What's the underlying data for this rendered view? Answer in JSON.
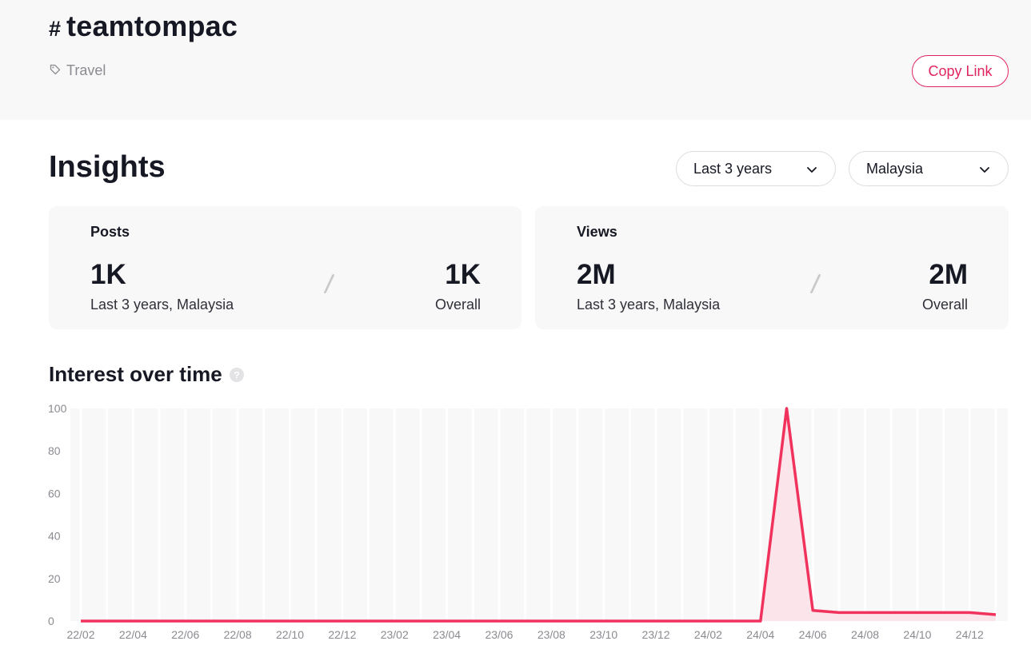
{
  "header": {
    "hash": "#",
    "hashtag": "teamtompac",
    "category": "Travel",
    "copy_link": "Copy Link"
  },
  "insights": {
    "title": "Insights",
    "time_filter": "Last 3 years",
    "region_filter": "Malaysia"
  },
  "stats": {
    "posts": {
      "label": "Posts",
      "value": "1K",
      "sub": "Last 3 years, Malaysia",
      "overall_value": "1K",
      "overall_label": "Overall"
    },
    "views": {
      "label": "Views",
      "value": "2M",
      "sub": "Last 3 years, Malaysia",
      "overall_value": "2M",
      "overall_label": "Overall"
    }
  },
  "interest": {
    "title": "Interest over time"
  },
  "colors": {
    "accent": "#e0245e",
    "line": "#f0325d",
    "area": "#fbe4ea",
    "panel": "#f8f8f8"
  },
  "chart_data": {
    "type": "area",
    "title": "",
    "xlabel": "",
    "ylabel": "",
    "ylim": [
      0,
      100
    ],
    "yticks": [
      "0",
      "20",
      "40",
      "60",
      "80",
      "100"
    ],
    "x_tick_labels": [
      "22/02",
      "22/04",
      "22/06",
      "22/08",
      "22/10",
      "22/12",
      "23/02",
      "23/04",
      "23/06",
      "23/08",
      "23/10",
      "23/12",
      "24/02",
      "24/04",
      "24/06",
      "24/08",
      "24/10",
      "24/12"
    ],
    "x": [
      "22/02",
      "22/03",
      "22/04",
      "22/05",
      "22/06",
      "22/07",
      "22/08",
      "22/09",
      "22/10",
      "22/11",
      "22/12",
      "23/01",
      "23/02",
      "23/03",
      "23/04",
      "23/05",
      "23/06",
      "23/07",
      "23/08",
      "23/09",
      "23/10",
      "23/11",
      "23/12",
      "24/01",
      "24/02",
      "24/03",
      "24/04",
      "24/05",
      "24/06",
      "24/07",
      "24/08",
      "24/09",
      "24/10",
      "24/11",
      "24/12",
      "25/01"
    ],
    "series": [
      {
        "values": [
          0,
          0,
          0,
          0,
          0,
          0,
          0,
          0,
          0,
          0,
          0,
          0,
          0,
          0,
          0,
          0,
          0,
          0,
          0,
          0,
          0,
          0,
          0,
          0,
          0,
          0,
          0,
          100,
          5,
          4,
          4,
          4,
          4,
          4,
          4,
          3
        ]
      }
    ],
    "grid": true
  }
}
